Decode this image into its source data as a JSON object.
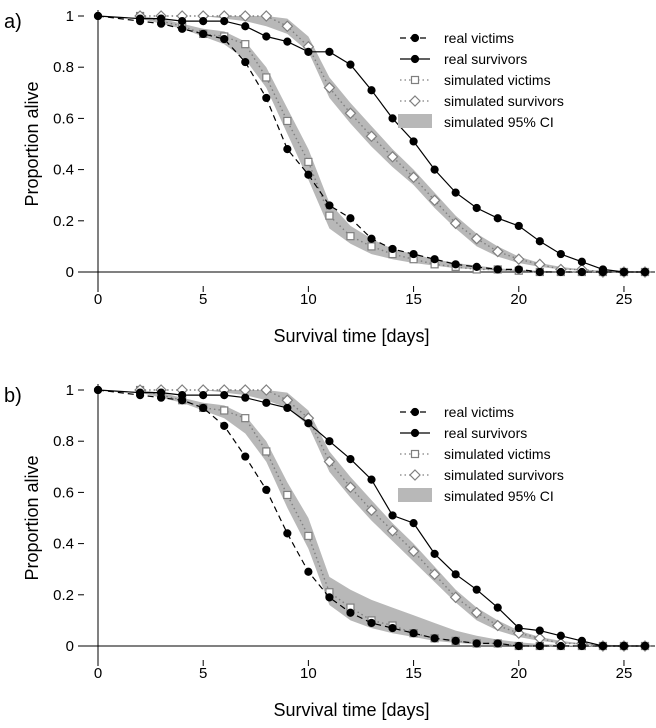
{
  "chart_data": [
    {
      "panel_label": "a)",
      "type": "line",
      "xlabel": "Survival time [days]",
      "ylabel": "Proportion alive",
      "xlim": [
        0,
        26
      ],
      "ylim": [
        0,
        1
      ],
      "xticks": [
        0,
        5,
        10,
        15,
        20,
        25
      ],
      "yticks": [
        0,
        0.2,
        0.4,
        0.6,
        0.8,
        1
      ],
      "legend_position": "top-right",
      "legend": [
        "real victims",
        "real survivors",
        "simulated victims",
        "simulated survivors",
        "simulated 95% CI"
      ],
      "ci_bands": [
        {
          "series": "simulated victims",
          "x": [
            2,
            3,
            4,
            5,
            6,
            7,
            8,
            9,
            10,
            11,
            12,
            13,
            14,
            15,
            16,
            17,
            18,
            19,
            20,
            21,
            22,
            23,
            24,
            25,
            26
          ],
          "lower": [
            0.99,
            0.97,
            0.95,
            0.92,
            0.89,
            0.83,
            0.72,
            0.54,
            0.36,
            0.17,
            0.11,
            0.07,
            0.05,
            0.035,
            0.025,
            0.015,
            0.01,
            0.005,
            0.003,
            0.002,
            0.001,
            0.001,
            0,
            0,
            0
          ],
          "upper": [
            1,
            0.99,
            0.97,
            0.95,
            0.94,
            0.9,
            0.8,
            0.64,
            0.48,
            0.27,
            0.18,
            0.13,
            0.09,
            0.07,
            0.05,
            0.035,
            0.025,
            0.015,
            0.008,
            0.005,
            0.003,
            0.002,
            0.001,
            0.001,
            0
          ]
        },
        {
          "series": "simulated survivors",
          "x": [
            2,
            3,
            4,
            5,
            6,
            7,
            8,
            9,
            10,
            11,
            12,
            13,
            14,
            15,
            16,
            17,
            18,
            19,
            20,
            21,
            22,
            23,
            24,
            25,
            26
          ],
          "lower": [
            1,
            1,
            1,
            1,
            0.99,
            0.98,
            0.96,
            0.93,
            0.86,
            0.68,
            0.58,
            0.49,
            0.41,
            0.34,
            0.25,
            0.17,
            0.1,
            0.06,
            0.035,
            0.02,
            0.01,
            0.005,
            0.003,
            0.001,
            0
          ],
          "upper": [
            1,
            1,
            1,
            1,
            1,
            1,
            1,
            0.99,
            0.92,
            0.76,
            0.66,
            0.57,
            0.48,
            0.4,
            0.31,
            0.22,
            0.15,
            0.1,
            0.06,
            0.035,
            0.02,
            0.01,
            0.005,
            0.003,
            0.001
          ]
        }
      ],
      "series": [
        {
          "name": "real victims",
          "style": "dashed",
          "marker": "filled-circle",
          "color": "#000000",
          "x": [
            0,
            2,
            3,
            4,
            5,
            6,
            7,
            8,
            9,
            10,
            11,
            12,
            13,
            14,
            15,
            16,
            17,
            18,
            19,
            20,
            21,
            22,
            23,
            24,
            25,
            26
          ],
          "y": [
            1,
            0.98,
            0.97,
            0.95,
            0.93,
            0.91,
            0.82,
            0.68,
            0.48,
            0.38,
            0.26,
            0.21,
            0.13,
            0.09,
            0.07,
            0.05,
            0.03,
            0.02,
            0.01,
            0.01,
            0,
            0,
            0,
            0,
            0,
            0
          ]
        },
        {
          "name": "real survivors",
          "style": "solid",
          "marker": "filled-circle",
          "color": "#000000",
          "x": [
            0,
            2,
            3,
            4,
            5,
            6,
            7,
            8,
            9,
            10,
            11,
            12,
            13,
            14,
            15,
            16,
            17,
            18,
            19,
            20,
            21,
            22,
            23,
            24,
            25,
            26
          ],
          "y": [
            1,
            0.99,
            0.99,
            0.98,
            0.98,
            0.98,
            0.96,
            0.92,
            0.9,
            0.86,
            0.86,
            0.81,
            0.71,
            0.6,
            0.51,
            0.4,
            0.31,
            0.25,
            0.21,
            0.18,
            0.12,
            0.07,
            0.04,
            0.01,
            0,
            0
          ]
        },
        {
          "name": "simulated victims",
          "style": "dotted",
          "marker": "open-square",
          "color": "#7f7f7f",
          "x": [
            2,
            3,
            4,
            5,
            6,
            7,
            8,
            9,
            10,
            11,
            12,
            13,
            14,
            15,
            16,
            17,
            18,
            19,
            20,
            21,
            22,
            23,
            24,
            25,
            26
          ],
          "y": [
            1,
            0.98,
            0.96,
            0.93,
            0.92,
            0.89,
            0.76,
            0.59,
            0.43,
            0.22,
            0.14,
            0.1,
            0.07,
            0.05,
            0.03,
            0.02,
            0.01,
            0.01,
            0.005,
            0,
            0,
            0,
            0,
            0,
            0
          ]
        },
        {
          "name": "simulated survivors",
          "style": "dotted",
          "marker": "open-diamond",
          "color": "#7f7f7f",
          "x": [
            2,
            3,
            4,
            5,
            6,
            7,
            8,
            9,
            10,
            11,
            12,
            13,
            14,
            15,
            16,
            17,
            18,
            19,
            20,
            21,
            22,
            23,
            24,
            25,
            26
          ],
          "y": [
            1,
            1,
            1,
            1,
            1,
            1,
            1,
            0.96,
            0.88,
            0.72,
            0.62,
            0.53,
            0.45,
            0.37,
            0.28,
            0.19,
            0.13,
            0.08,
            0.05,
            0.03,
            0.01,
            0.01,
            0,
            0,
            0
          ]
        }
      ]
    },
    {
      "panel_label": "b)",
      "type": "line",
      "xlabel": "Survival time [days]",
      "ylabel": "Proportion alive",
      "xlim": [
        0,
        26
      ],
      "ylim": [
        0,
        1
      ],
      "xticks": [
        0,
        5,
        10,
        15,
        20,
        25
      ],
      "yticks": [
        0,
        0.2,
        0.4,
        0.6,
        0.8,
        1
      ],
      "legend_position": "top-right",
      "legend": [
        "real victims",
        "real survivors",
        "simulated victims",
        "simulated survivors",
        "simulated 95% CI"
      ],
      "ci_bands": [
        {
          "series": "simulated victims",
          "x": [
            2,
            3,
            4,
            5,
            6,
            7,
            8,
            9,
            10,
            11,
            12,
            13,
            14,
            15,
            16,
            17,
            18,
            19,
            20,
            21,
            22,
            23,
            24,
            25,
            26
          ],
          "lower": [
            0.99,
            0.97,
            0.95,
            0.92,
            0.89,
            0.83,
            0.72,
            0.54,
            0.38,
            0.16,
            0.1,
            0.07,
            0.05,
            0.035,
            0.02,
            0.012,
            0.007,
            0.004,
            0.002,
            0.001,
            0,
            0,
            0,
            0,
            0
          ],
          "upper": [
            1,
            0.99,
            0.97,
            0.95,
            0.94,
            0.9,
            0.8,
            0.64,
            0.5,
            0.27,
            0.22,
            0.18,
            0.15,
            0.12,
            0.09,
            0.06,
            0.04,
            0.025,
            0.015,
            0.008,
            0.004,
            0.002,
            0.001,
            0.001,
            0
          ]
        },
        {
          "series": "simulated survivors",
          "x": [
            2,
            3,
            4,
            5,
            6,
            7,
            8,
            9,
            10,
            11,
            12,
            13,
            14,
            15,
            16,
            17,
            18,
            19,
            20,
            21,
            22,
            23,
            24,
            25,
            26
          ],
          "lower": [
            1,
            1,
            1,
            1,
            0.99,
            0.98,
            0.96,
            0.93,
            0.86,
            0.68,
            0.58,
            0.49,
            0.41,
            0.33,
            0.25,
            0.17,
            0.1,
            0.06,
            0.035,
            0.02,
            0.01,
            0.005,
            0.003,
            0.001,
            0
          ],
          "upper": [
            1,
            1,
            1,
            1,
            1,
            1,
            1,
            0.99,
            0.92,
            0.76,
            0.66,
            0.57,
            0.48,
            0.4,
            0.31,
            0.22,
            0.15,
            0.1,
            0.06,
            0.035,
            0.02,
            0.01,
            0.005,
            0.003,
            0.001
          ]
        }
      ],
      "series": [
        {
          "name": "real victims",
          "style": "dashed",
          "marker": "filled-circle",
          "color": "#000000",
          "x": [
            0,
            2,
            3,
            4,
            5,
            6,
            7,
            8,
            9,
            10,
            11,
            12,
            13,
            14,
            15,
            16,
            17,
            18,
            19,
            20,
            21,
            22,
            23,
            24,
            25,
            26
          ],
          "y": [
            1,
            0.98,
            0.97,
            0.96,
            0.93,
            0.86,
            0.74,
            0.61,
            0.44,
            0.29,
            0.19,
            0.13,
            0.09,
            0.07,
            0.05,
            0.03,
            0.02,
            0.01,
            0.01,
            0,
            0,
            0,
            0,
            0,
            0,
            0
          ]
        },
        {
          "name": "real survivors",
          "style": "solid",
          "marker": "filled-circle",
          "color": "#000000",
          "x": [
            0,
            2,
            3,
            4,
            5,
            6,
            7,
            8,
            9,
            10,
            11,
            12,
            13,
            14,
            15,
            16,
            17,
            18,
            19,
            20,
            21,
            22,
            23,
            24,
            25,
            26
          ],
          "y": [
            1,
            0.99,
            0.99,
            0.98,
            0.98,
            0.98,
            0.97,
            0.95,
            0.93,
            0.87,
            0.8,
            0.73,
            0.65,
            0.51,
            0.48,
            0.36,
            0.28,
            0.22,
            0.15,
            0.07,
            0.06,
            0.04,
            0.02,
            0,
            0,
            0
          ]
        },
        {
          "name": "simulated victims",
          "style": "dotted",
          "marker": "open-square",
          "color": "#7f7f7f",
          "x": [
            2,
            3,
            4,
            5,
            6,
            7,
            8,
            9,
            10,
            11,
            12,
            13,
            14,
            15,
            16,
            17,
            18,
            19,
            20,
            21,
            22,
            23,
            24,
            25,
            26
          ],
          "y": [
            1,
            0.98,
            0.96,
            0.93,
            0.92,
            0.89,
            0.76,
            0.59,
            0.43,
            0.21,
            0.15,
            0.1,
            0.08,
            0.05,
            0.03,
            0.02,
            0.01,
            0.01,
            0,
            0,
            0,
            0,
            0,
            0,
            0
          ]
        },
        {
          "name": "simulated survivors",
          "style": "dotted",
          "marker": "open-diamond",
          "color": "#7f7f7f",
          "x": [
            2,
            3,
            4,
            5,
            6,
            7,
            8,
            9,
            10,
            11,
            12,
            13,
            14,
            15,
            16,
            17,
            18,
            19,
            20,
            21,
            22,
            23,
            24,
            25,
            26
          ],
          "y": [
            1,
            1,
            1,
            1,
            1,
            1,
            1,
            0.96,
            0.89,
            0.72,
            0.62,
            0.53,
            0.45,
            0.37,
            0.28,
            0.19,
            0.13,
            0.08,
            0.05,
            0.03,
            0.01,
            0.01,
            0,
            0,
            0
          ]
        }
      ]
    }
  ],
  "colors": {
    "ci_band": "#b8b8b8",
    "real": "#000000",
    "simulated": "#7f7f7f"
  }
}
